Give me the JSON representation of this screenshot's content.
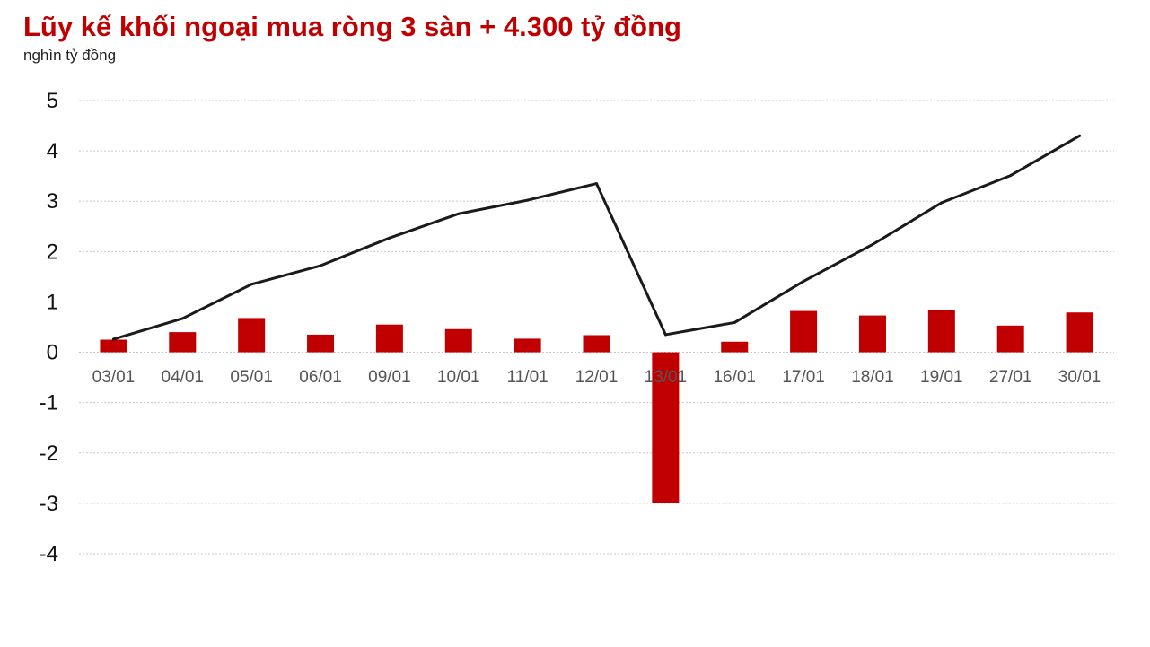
{
  "chart_data": {
    "type": "bar",
    "title": "Lũy kế khối ngoại mua ròng 3 sàn + 4.300 tỷ đồng",
    "ylabel": "nghìn tỷ đồng",
    "xlabel": "",
    "categories": [
      "03/01",
      "04/01",
      "05/01",
      "06/01",
      "09/01",
      "10/01",
      "11/01",
      "12/01",
      "13/01",
      "16/01",
      "17/01",
      "18/01",
      "19/01",
      "27/01",
      "30/01"
    ],
    "series": [
      {
        "type": "bar",
        "color": "#c00000",
        "values": [
          0.25,
          0.4,
          0.68,
          0.35,
          0.55,
          0.46,
          0.27,
          0.34,
          -3.0,
          0.21,
          0.82,
          0.73,
          0.84,
          0.53,
          0.79
        ]
      },
      {
        "type": "line",
        "color": "#1a1a1a",
        "values": [
          0.26,
          0.67,
          1.35,
          1.72,
          2.27,
          2.75,
          3.02,
          3.35,
          0.35,
          0.59,
          1.41,
          2.14,
          2.97,
          3.51,
          4.3
        ]
      }
    ],
    "ylim": [
      -4,
      5
    ],
    "yticks": [
      5,
      4,
      3,
      2,
      1,
      0,
      -1,
      -2,
      -3,
      -4
    ],
    "grid": true,
    "legend": "none"
  }
}
